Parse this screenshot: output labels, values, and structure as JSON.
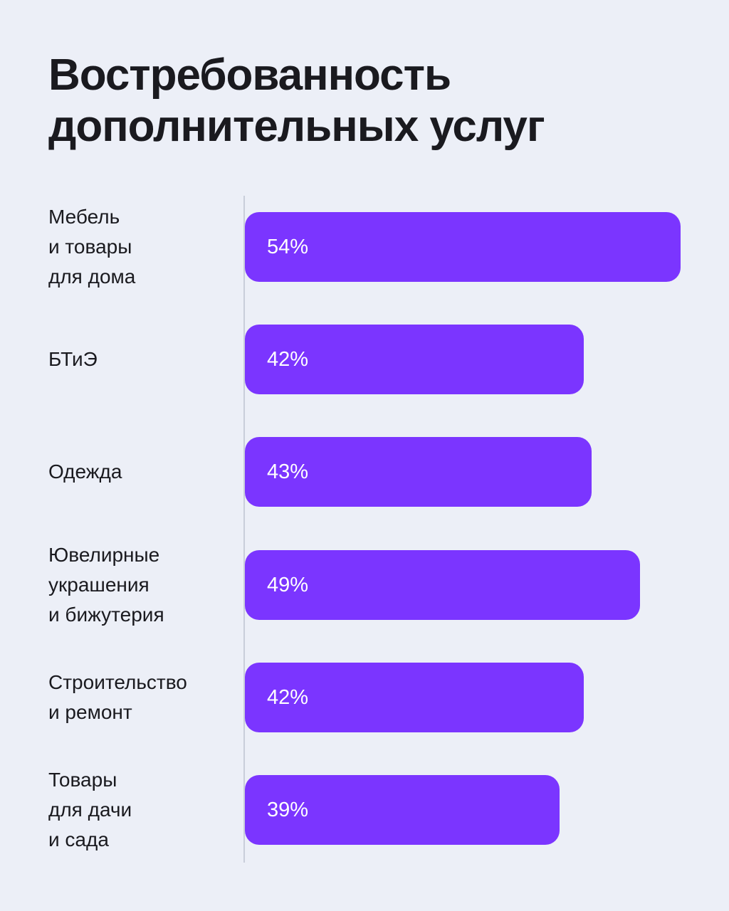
{
  "chart_data": {
    "type": "bar",
    "orientation": "horizontal",
    "title_lines": [
      "Востребованность",
      "дополнительных услуг"
    ],
    "unit": "%",
    "xlim": [
      0,
      54
    ],
    "categories": [
      {
        "lines": [
          "Мебель",
          "и товары",
          "для дома"
        ],
        "value": 54,
        "label": "54%"
      },
      {
        "lines": [
          "БТиЭ"
        ],
        "value": 42,
        "label": "42%"
      },
      {
        "lines": [
          "Одежда"
        ],
        "value": 43,
        "label": "43%"
      },
      {
        "lines": [
          "Ювелирные",
          "украшения",
          "и бижутерия"
        ],
        "value": 49,
        "label": "49%"
      },
      {
        "lines": [
          "Строительство",
          "и ремонт"
        ],
        "value": 42,
        "label": "42%"
      },
      {
        "lines": [
          "Товары",
          "для дачи",
          "и сада"
        ],
        "value": 39,
        "label": "39%"
      }
    ],
    "bar_color": "#7B35FF"
  }
}
